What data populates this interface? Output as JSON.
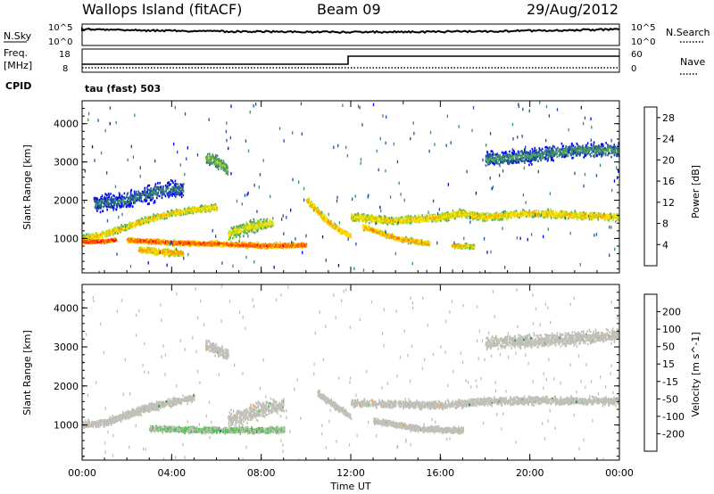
{
  "header": {
    "station": "Wallops Island (fitACF)",
    "beam": "Beam 09",
    "date": "29/Aug/2012"
  },
  "noise_panel": {
    "left_label": "N.Sky",
    "left_ticks": [
      "10^5",
      "10^0"
    ],
    "right_label": "N.Search",
    "right_ticks": [
      "10^5",
      "10^0"
    ]
  },
  "freq_panel": {
    "left_label_line1": "Freq.",
    "left_label_line2": "[MHz]",
    "left_ticks": [
      "18",
      "8"
    ],
    "right_label": "Nave",
    "right_ticks": [
      "60",
      "0"
    ],
    "cpid_label": "CPID",
    "cpid_value": "tau (fast) 503"
  },
  "colors": {
    "power": [
      "#0000ff",
      "#1f4fa0",
      "#3e8a6e",
      "#5aa85a",
      "#b0d820",
      "#ffe000",
      "#ff9a00",
      "#ff5a00",
      "#ff0000"
    ],
    "velocity": [
      "#e00000",
      "#ff5a00",
      "#ff9a00",
      "#c0c0b8",
      "#c0c0b8",
      "#5ac05a",
      "#1f8a3a",
      "#1f4fa0",
      "#0000c0"
    ],
    "gray_scatter": "#c0c0b8"
  },
  "chart_data": [
    {
      "type": "heatmap",
      "name": "Power",
      "ylabel": "Slant Range [km]",
      "yticks": [
        1000,
        2000,
        3000,
        4000
      ],
      "ylim": [
        100,
        4600
      ],
      "xlim": [
        0,
        24
      ],
      "colorbar": {
        "label": "Power [dB]",
        "ticks": [
          "4",
          "8",
          "12",
          "16",
          "20",
          "24",
          "28"
        ],
        "range": [
          0,
          30
        ]
      },
      "bands": [
        {
          "pts": [
            [
              0,
              1000
            ],
            [
              1,
              1100
            ],
            [
              2,
              1300
            ],
            [
              3,
              1500
            ],
            [
              4,
              1650
            ],
            [
              5,
              1750
            ],
            [
              6,
              1800
            ]
          ],
          "width": 110,
          "value": 20
        },
        {
          "pts": [
            [
              0,
              900
            ],
            [
              1,
              920
            ],
            [
              1.5,
              960
            ]
          ],
          "width": 70,
          "value": 28
        },
        {
          "pts": [
            [
              2,
              950
            ],
            [
              4,
              880
            ],
            [
              6,
              850
            ],
            [
              8,
              800
            ],
            [
              10,
              820
            ]
          ],
          "width": 90,
          "value": 26
        },
        {
          "pts": [
            [
              2.5,
              700
            ],
            [
              3.5,
              640
            ],
            [
              4.5,
              600
            ]
          ],
          "width": 110,
          "value": 22
        },
        {
          "pts": [
            [
              6.5,
              1100
            ],
            [
              7.5,
              1300
            ],
            [
              8.5,
              1400
            ]
          ],
          "width": 220,
          "value": 18
        },
        {
          "pts": [
            [
              10,
              2000
            ],
            [
              10.5,
              1700
            ],
            [
              11,
              1400
            ],
            [
              11.5,
              1200
            ],
            [
              12,
              1050
            ]
          ],
          "width": 110,
          "value": 22
        },
        {
          "pts": [
            [
              12,
              1550
            ],
            [
              14,
              1450
            ],
            [
              16,
              1550
            ],
            [
              17,
              1650
            ],
            [
              18,
              1550
            ],
            [
              20,
              1650
            ],
            [
              22,
              1600
            ],
            [
              24,
              1550
            ]
          ],
          "width": 140,
          "value": 20
        },
        {
          "pts": [
            [
              12.5,
              1300
            ],
            [
              14,
              1000
            ],
            [
              15.5,
              850
            ]
          ],
          "width": 90,
          "value": 22
        },
        {
          "pts": [
            [
              16.5,
              800
            ],
            [
              17.5,
              780
            ]
          ],
          "width": 80,
          "value": 20
        },
        {
          "pts": [
            [
              18,
              3050
            ],
            [
              20,
              3150
            ],
            [
              22,
              3300
            ],
            [
              24,
              3300
            ]
          ],
          "width": 240,
          "value": 10
        },
        {
          "pts": [
            [
              0.5,
              1900
            ],
            [
              2,
              2000
            ],
            [
              3.5,
              2250
            ],
            [
              4.5,
              2300
            ]
          ],
          "width": 300,
          "value": 8
        },
        {
          "pts": [
            [
              5.5,
              3100
            ],
            [
              6,
              3000
            ],
            [
              6.5,
              2800
            ]
          ],
          "width": 220,
          "value": 14
        }
      ]
    },
    {
      "type": "heatmap",
      "name": "Velocity",
      "ylabel": "Slant Range [km]",
      "yticks": [
        1000,
        2000,
        3000,
        4000
      ],
      "ylim": [
        100,
        4600
      ],
      "xlabel": "Time UT",
      "xticks": [
        "00:00",
        "04:00",
        "08:00",
        "12:00",
        "16:00",
        "20:00",
        "00:00"
      ],
      "xlim": [
        0,
        24
      ],
      "colorbar": {
        "label": "Velocity [m s^-1]",
        "ticks": [
          "200",
          "100",
          "50",
          "15",
          "-15",
          "-50",
          "-100",
          "-200"
        ],
        "range": [
          -250,
          250
        ]
      },
      "bands": [
        {
          "pts": [
            [
              0,
              1000
            ],
            [
              1,
              1050
            ],
            [
              2,
              1250
            ],
            [
              3,
              1450
            ],
            [
              5,
              1700
            ]
          ],
          "width": 140,
          "value": 0
        },
        {
          "pts": [
            [
              3,
              900
            ],
            [
              5,
              870
            ],
            [
              7,
              860
            ],
            [
              9,
              860
            ]
          ],
          "width": 110,
          "value": 30
        },
        {
          "pts": [
            [
              6.5,
              1100
            ],
            [
              8,
              1400
            ],
            [
              9,
              1500
            ]
          ],
          "width": 300,
          "value": -60
        },
        {
          "pts": [
            [
              12,
              1550
            ],
            [
              16,
              1500
            ],
            [
              18,
              1600
            ],
            [
              20,
              1620
            ],
            [
              24,
              1600
            ]
          ],
          "width": 140,
          "value": 0
        },
        {
          "pts": [
            [
              13,
              1100
            ],
            [
              15,
              900
            ],
            [
              17,
              850
            ]
          ],
          "width": 110,
          "value": 0
        },
        {
          "pts": [
            [
              10.5,
              1800
            ],
            [
              11.5,
              1400
            ],
            [
              12,
              1200
            ]
          ],
          "width": 120,
          "value": 0
        },
        {
          "pts": [
            [
              18,
              3100
            ],
            [
              22,
              3200
            ],
            [
              24,
              3300
            ]
          ],
          "width": 230,
          "value": 0
        },
        {
          "pts": [
            [
              5.5,
              3050
            ],
            [
              6.5,
              2800
            ]
          ],
          "width": 200,
          "value": 0
        }
      ]
    }
  ]
}
